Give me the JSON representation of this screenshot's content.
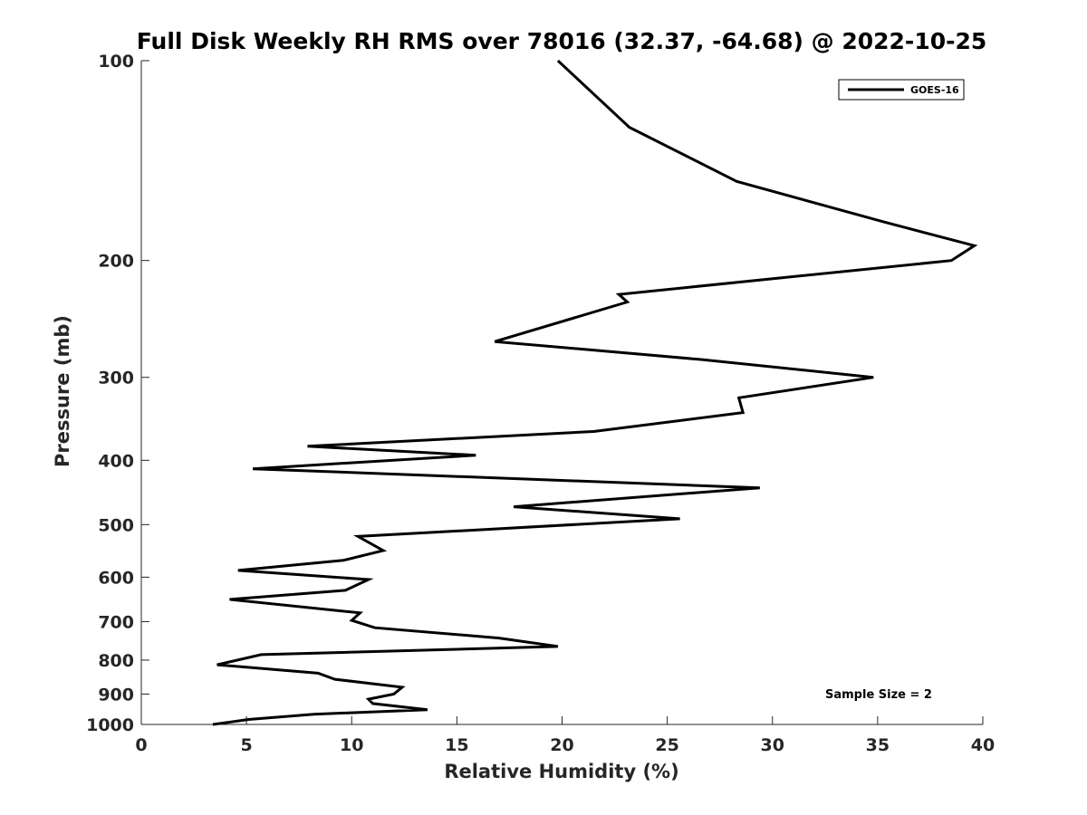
{
  "chart_data": {
    "type": "line",
    "title": "Full Disk Weekly RH RMS over 78016 (32.37, -64.68) @ 2022-10-25",
    "xlabel": "Relative Humidity (%)",
    "ylabel": "Pressure (mb)",
    "xlim": [
      0,
      40
    ],
    "ylim": [
      100,
      1000
    ],
    "y_scale": "log",
    "y_reversed": true,
    "grid": false,
    "legend_position": "top-right",
    "x_ticks": [
      0,
      5,
      10,
      15,
      20,
      25,
      30,
      35,
      40
    ],
    "y_ticks": [
      100,
      200,
      300,
      400,
      500,
      600,
      700,
      800,
      900,
      1000
    ],
    "annotation": "Sample Size = 2",
    "series": [
      {
        "name": "GOES-16",
        "color": "#000000",
        "x": [
          19.8,
          23.2,
          28.3,
          35.3,
          39.6,
          38.5,
          22.7,
          23.1,
          16.8,
          26.6,
          34.8,
          28.4,
          28.6,
          21.5,
          7.9,
          15.9,
          5.3,
          29.4,
          17.7,
          25.6,
          10.3,
          11.5,
          9.6,
          4.6,
          10.8,
          9.7,
          4.2,
          10.4,
          10.0,
          11.1,
          17.0,
          19.8,
          5.7,
          3.6,
          8.4,
          9.2,
          12.4,
          12.0,
          10.8,
          11.0,
          13.6,
          8.2,
          5.1,
          3.4
        ],
        "y": [
          100,
          126,
          152,
          175,
          190,
          200,
          225,
          231,
          265,
          282,
          300,
          322,
          339,
          362,
          381,
          393,
          412,
          440,
          470,
          490,
          521,
          547,
          566,
          586,
          605,
          628,
          648,
          679,
          697,
          715,
          741,
          763,
          785,
          813,
          837,
          855,
          879,
          900,
          916,
          930,
          950,
          965,
          983,
          1000
        ]
      }
    ]
  }
}
